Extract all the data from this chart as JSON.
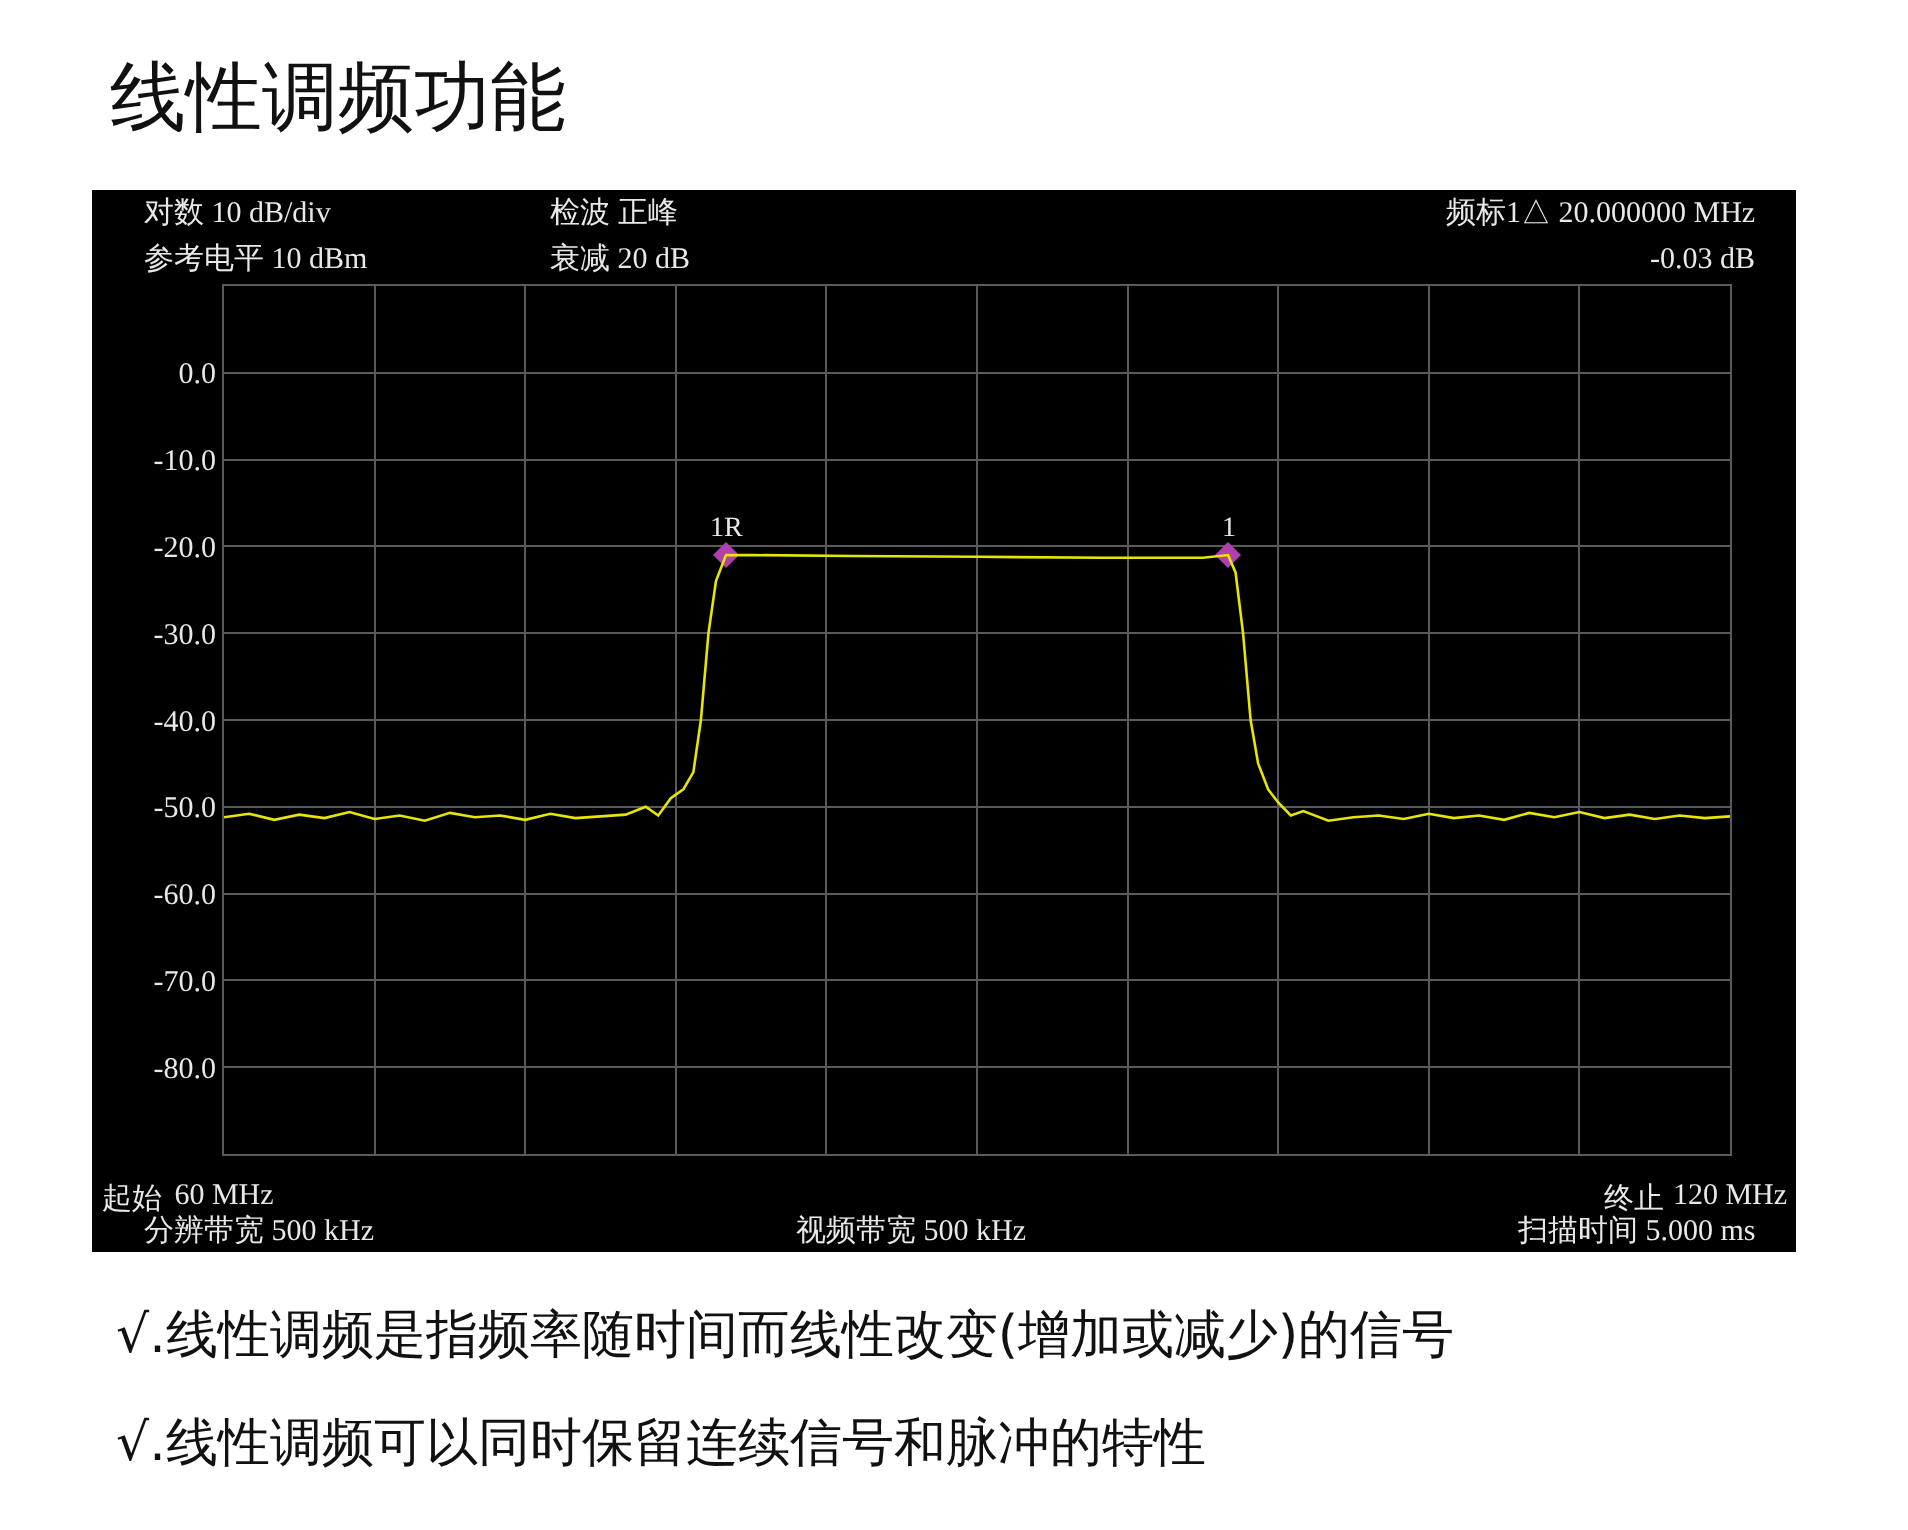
{
  "chart_data": {
    "type": "line",
    "title": "线性调频功能",
    "xlim": [
      60,
      120
    ],
    "xticks": [
      {
        "value": 60,
        "label": "60 MHz"
      },
      {
        "value": 66,
        "label": null
      },
      {
        "value": 72,
        "label": null
      },
      {
        "value": 78,
        "label": null
      },
      {
        "value": 84,
        "label": null
      },
      {
        "value": 90,
        "label": null
      },
      {
        "value": 96,
        "label": null
      },
      {
        "value": 102,
        "label": null
      },
      {
        "value": 108,
        "label": null
      },
      {
        "value": 114,
        "label": null
      },
      {
        "value": 120,
        "label": "120 MHz"
      }
    ],
    "ylim": [
      -90,
      10
    ],
    "yticks": [
      {
        "value": 10,
        "label": null
      },
      {
        "value": 0,
        "label": "0.0"
      },
      {
        "value": -10,
        "label": "-10.0"
      },
      {
        "value": -20,
        "label": "-20.0"
      },
      {
        "value": -30,
        "label": "-30.0"
      },
      {
        "value": -40,
        "label": "-40.0"
      },
      {
        "value": -50,
        "label": "-50.0"
      },
      {
        "value": -60,
        "label": "-60.0"
      },
      {
        "value": -70,
        "label": "-70.0"
      },
      {
        "value": -80,
        "label": "-80.0"
      },
      {
        "value": -90,
        "label": null
      }
    ],
    "grid": true,
    "series": [
      {
        "color": "#e6e600",
        "marker": "none",
        "line_style": "solid",
        "x": [
          60,
          61,
          62,
          63,
          64,
          65,
          66,
          67,
          68,
          69,
          70,
          71,
          72,
          73,
          74,
          75,
          76,
          76.8,
          77.3,
          77.8,
          78.3,
          78.7,
          79.0,
          79.3,
          79.6,
          80,
          81,
          85,
          90,
          95,
          99,
          100,
          100.3,
          100.6,
          100.9,
          101.2,
          101.6,
          102,
          102.5,
          103,
          104,
          105,
          106,
          107,
          108,
          109,
          110,
          111,
          112,
          113,
          114,
          115,
          116,
          117,
          118,
          119,
          120
        ],
        "values": [
          -51.2,
          -50.8,
          -51.5,
          -50.9,
          -51.3,
          -50.6,
          -51.4,
          -51.0,
          -51.6,
          -50.7,
          -51.2,
          -51.0,
          -51.5,
          -50.8,
          -51.3,
          -51.1,
          -50.9,
          -50.0,
          -51.0,
          -49.0,
          -48.0,
          -46,
          -40,
          -30,
          -24,
          -21,
          -21,
          -21.1,
          -21.2,
          -21.3,
          -21.3,
          -21.0,
          -23,
          -30,
          -40,
          -45,
          -48,
          -49.5,
          -51,
          -50.5,
          -51.6,
          -51.2,
          -51.0,
          -51.4,
          -50.8,
          -51.3,
          -51.0,
          -51.5,
          -50.7,
          -51.2,
          -50.6,
          -51.3,
          -50.9,
          -51.4,
          -51.0,
          -51.3,
          -51.1
        ]
      },
      {
        "type": "scatter",
        "color": "#b040b0",
        "marker": "diamond",
        "x": [
          80,
          100
        ],
        "values": [
          -21,
          -21
        ]
      }
    ],
    "annotations": [
      "起始",
      "终止",
      "对数 10 dB/div",
      "检波 正峰",
      "频标1△ 20.000000 MHz",
      "参考电平 10 dBm",
      "衰减 20 dB",
      "-0.03 dB",
      "分辨带宽 500 kHz",
      "视频带宽 500 kHz",
      "扫描时间 5.000 ms",
      "√.线性调频是指频率随时间而线性改变(增加或减少)的信号",
      "√.线性调频可以同时保留连续信号和脉冲的特性",
      {
        "text": "1R",
        "x": 80,
        "y": -21
      },
      {
        "text": "1",
        "x": 100,
        "y": -21
      }
    ]
  }
}
